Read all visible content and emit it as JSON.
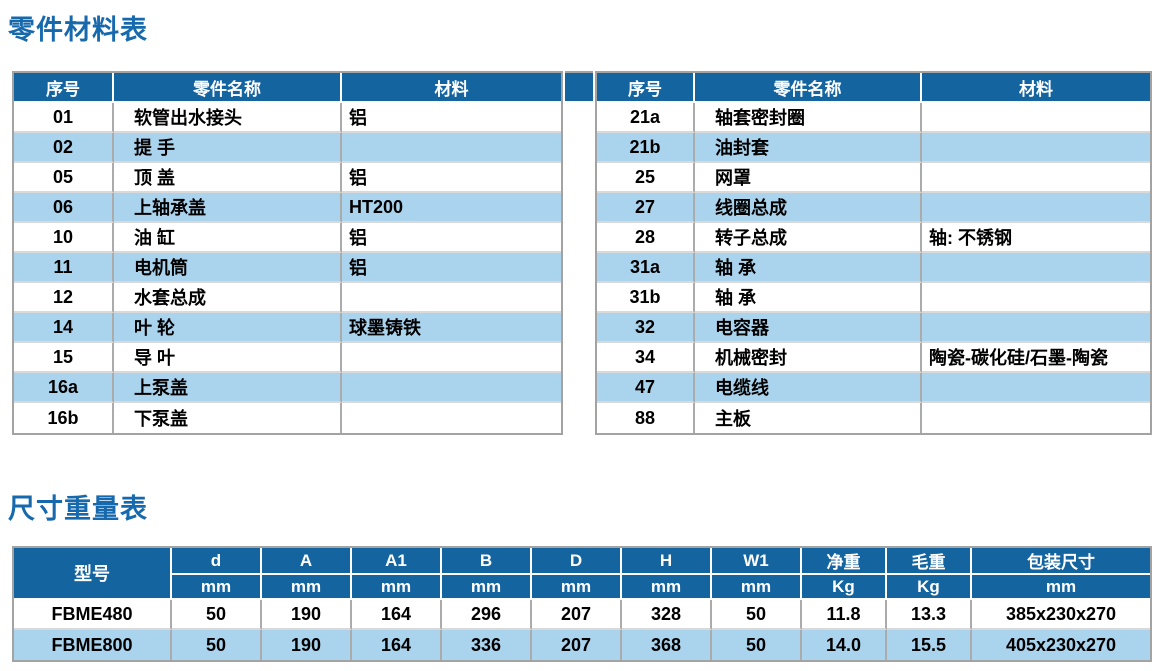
{
  "sections": {
    "parts_title": "零件材料表",
    "size_title": "尺寸重量表"
  },
  "parts_table": {
    "headers": {
      "num": "序号",
      "name": "零件名称",
      "material": "材料"
    },
    "left_rows": [
      {
        "num": "01",
        "name": "软管出水接头",
        "material": "铝"
      },
      {
        "num": "02",
        "name": "提 手",
        "material": ""
      },
      {
        "num": "05",
        "name": "顶 盖",
        "material": "铝"
      },
      {
        "num": "06",
        "name": "上轴承盖",
        "material": "HT200"
      },
      {
        "num": "10",
        "name": "油 缸",
        "material": "铝"
      },
      {
        "num": "11",
        "name": "电机筒",
        "material": "铝"
      },
      {
        "num": "12",
        "name": "水套总成",
        "material": ""
      },
      {
        "num": "14",
        "name": "叶 轮",
        "material": "球墨铸铁"
      },
      {
        "num": "15",
        "name": "导 叶",
        "material": ""
      },
      {
        "num": "16a",
        "name": "上泵盖",
        "material": ""
      },
      {
        "num": "16b",
        "name": "下泵盖",
        "material": ""
      }
    ],
    "right_rows": [
      {
        "num": "21a",
        "name": "轴套密封圈",
        "material": ""
      },
      {
        "num": "21b",
        "name": "油封套",
        "material": ""
      },
      {
        "num": "25",
        "name": "网罩",
        "material": ""
      },
      {
        "num": "27",
        "name": "线圈总成",
        "material": ""
      },
      {
        "num": "28",
        "name": "转子总成",
        "material": "轴: 不锈钢"
      },
      {
        "num": "31a",
        "name": "轴 承",
        "material": ""
      },
      {
        "num": "31b",
        "name": "轴 承",
        "material": ""
      },
      {
        "num": "32",
        "name": "电容器",
        "material": ""
      },
      {
        "num": "34",
        "name": "机械密封",
        "material": "陶瓷-碳化硅/石墨-陶瓷"
      },
      {
        "num": "47",
        "name": "电缆线",
        "material": ""
      },
      {
        "num": "88",
        "name": "主板",
        "material": ""
      }
    ]
  },
  "size_table": {
    "model_header": "型号",
    "columns": [
      {
        "label": "d",
        "unit": "mm"
      },
      {
        "label": "A",
        "unit": "mm"
      },
      {
        "label": "A1",
        "unit": "mm"
      },
      {
        "label": "B",
        "unit": "mm"
      },
      {
        "label": "D",
        "unit": "mm"
      },
      {
        "label": "H",
        "unit": "mm"
      },
      {
        "label": "W1",
        "unit": "mm"
      },
      {
        "label": "净重",
        "unit": "Kg"
      },
      {
        "label": "毛重",
        "unit": "Kg"
      },
      {
        "label": "包装尺寸",
        "unit": "mm"
      }
    ],
    "rows": [
      {
        "model": "FBME480",
        "values": [
          "50",
          "190",
          "164",
          "296",
          "207",
          "328",
          "50",
          "11.8",
          "13.3",
          "385x230x270"
        ]
      },
      {
        "model": "FBME800",
        "values": [
          "50",
          "190",
          "164",
          "336",
          "207",
          "368",
          "50",
          "14.0",
          "15.5",
          "405x230x270"
        ]
      }
    ]
  },
  "colors": {
    "header_bg": "#1464a0",
    "row_alt_bg": "#aad4ee",
    "title_text": "#1769ae",
    "grid_border": "#a3a3a3"
  }
}
